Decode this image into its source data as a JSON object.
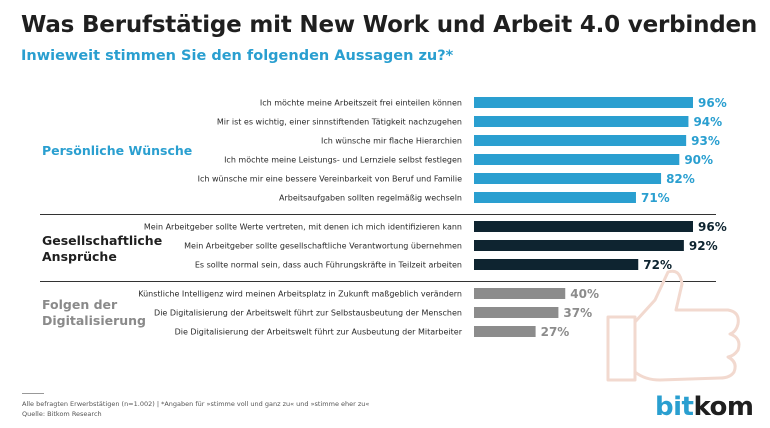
{
  "title": "Was Berufstätige mit New Work und Arbeit 4.0 verbinden",
  "subtitle": "Inwieweit stimmen Sie den folgenden Aussagen zu?*",
  "footnote": {
    "line1": "Alle befragten Erwerbstätigen (n=1.002) | *Angaben für »stimme voll und ganz zu« und »stimme eher zu«",
    "line2": "Quelle: Bitkom Research"
  },
  "logo": {
    "part1": "bit",
    "part2": "kom"
  },
  "colors": {
    "blue": "#2a9fd0",
    "dark": "#0e2430",
    "gray": "#8c8c8c"
  },
  "chart_data": {
    "type": "bar",
    "orientation": "horizontal",
    "xlim": [
      0,
      100
    ],
    "unit": "%",
    "groups": [
      {
        "name": "Persönliche Wünsche",
        "color": "#2a9fd0",
        "items": [
          {
            "label": "Ich möchte meine Arbeitszeit frei einteilen können",
            "value": 96
          },
          {
            "label": "Mir ist es wichtig, einer sinnstiftenden Tätigkeit nachzugehen",
            "value": 94
          },
          {
            "label": "Ich wünsche mir flache Hierarchien",
            "value": 93
          },
          {
            "label": "Ich möchte meine Leistungs- und Lernziele selbst festlegen",
            "value": 90
          },
          {
            "label": "Ich wünsche mir eine bessere Vereinbarkeit von Beruf und Familie",
            "value": 82
          },
          {
            "label": "Arbeitsaufgaben sollten regelmäßig wechseln",
            "value": 71
          }
        ]
      },
      {
        "name": "Gesellschaftliche\nAnsprüche",
        "color": "#0e2430",
        "items": [
          {
            "label": "Mein Arbeitgeber sollte Werte vertreten, mit denen ich mich identifizieren kann",
            "value": 96
          },
          {
            "label": "Mein Arbeitgeber sollte gesellschaftliche Verantwortung übernehmen",
            "value": 92
          },
          {
            "label": "Es sollte normal sein, dass auch Führungskräfte in Teilzeit arbeiten",
            "value": 72
          }
        ]
      },
      {
        "name": "Folgen der\nDigitalisierung",
        "color": "#8c8c8c",
        "items": [
          {
            "label": "Künstliche Intelligenz wird meinen Arbeitsplatz in Zukunft maßgeblich verändern",
            "value": 40
          },
          {
            "label": "Die Digitalisierung der Arbeitswelt führt zur Selbstausbeutung der Menschen",
            "value": 37
          },
          {
            "label": "Die Digitalisierung der Arbeitswelt führt zur Ausbeutung der Mitarbeiter",
            "value": 27
          }
        ]
      }
    ]
  }
}
